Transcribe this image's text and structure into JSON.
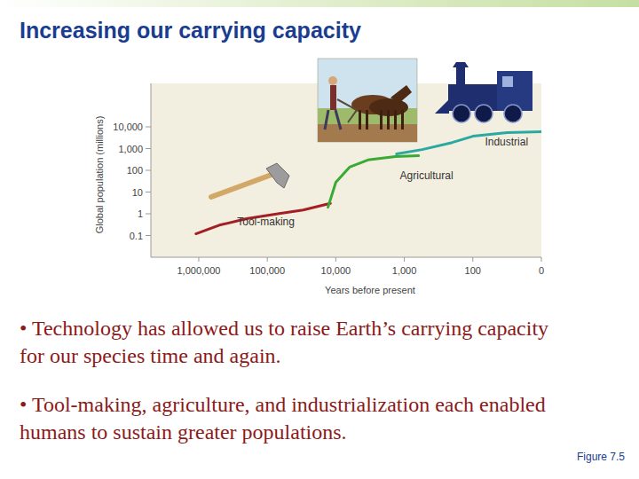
{
  "slide": {
    "title": "Increasing our carrying capacity",
    "bullets": [
      "• Technology has allowed us to raise Earth’s carrying capacity for our species time and again.",
      "• Tool-making, agriculture, and industrialization each enabled humans to sustain greater populations."
    ],
    "figure_label": "Figure 7.5"
  },
  "chart_data": {
    "type": "line",
    "x_label": "Years before present",
    "y_label": "Global population (millions)",
    "log": true,
    "grid": false,
    "xlim": [
      5000000,
      0
    ],
    "ylim": [
      0.01,
      1000000
    ],
    "xticks": [
      {
        "value": 1000000,
        "label": "1,000,000"
      },
      {
        "value": 100000,
        "label": "100,000"
      },
      {
        "value": 10000,
        "label": "10,000"
      },
      {
        "value": 1000,
        "label": "1,000"
      },
      100,
      0
    ],
    "yticks": [
      0.1,
      1,
      10,
      100,
      {
        "value": 1000,
        "label": "1,000"
      },
      {
        "value": 10000,
        "label": "10,000"
      }
    ],
    "series": [
      {
        "name": "Tool-making",
        "color": "#a31f24",
        "x": [
          1100000,
          500000,
          200000,
          70000,
          30000,
          12000
        ],
        "values": [
          0.12,
          0.3,
          0.6,
          1,
          1.5,
          3
        ]
      },
      {
        "name": "Agricultural",
        "color": "#3aaa35",
        "x": [
          13000,
          10000,
          6300,
          3400,
          1350,
          620
        ],
        "values": [
          2,
          28,
          140,
          300,
          430,
          470
        ]
      },
      {
        "name": "Industrial",
        "color": "#2aa9a0",
        "x": [
          1300,
          550,
          200,
          100,
          50,
          0
        ],
        "values": [
          570,
          900,
          1900,
          3700,
          5400,
          6000
        ]
      }
    ]
  }
}
